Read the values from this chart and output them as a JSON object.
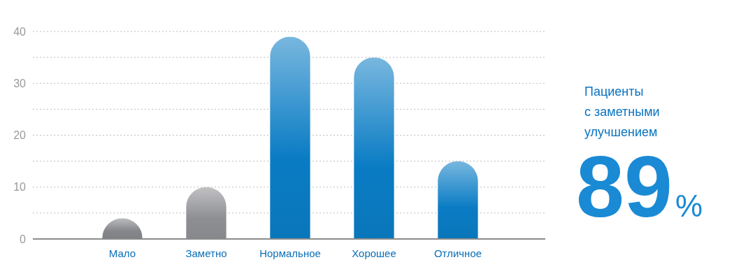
{
  "chart_data": {
    "type": "bar",
    "categories": [
      "Мало",
      "Заметно",
      "Нормальное",
      "Хорошее",
      "Отличное"
    ],
    "values": [
      4,
      10,
      39,
      35,
      15
    ],
    "colors": [
      "#86878b",
      "#8e8f93",
      "#0a7cc4",
      "#0a7cc4",
      "#0a7cc4"
    ],
    "ylim": [
      0,
      40
    ],
    "yticks": [
      0,
      {
        "value": 5,
        "label": null
      },
      10,
      {
        "value": 15,
        "label": null
      },
      20,
      {
        "value": 25,
        "label": null
      },
      30,
      {
        "value": 35,
        "label": null
      },
      40
    ],
    "grid": true,
    "annotations": [
      "Пациенты\nс заметными\nулучшением",
      "89%"
    ]
  }
}
